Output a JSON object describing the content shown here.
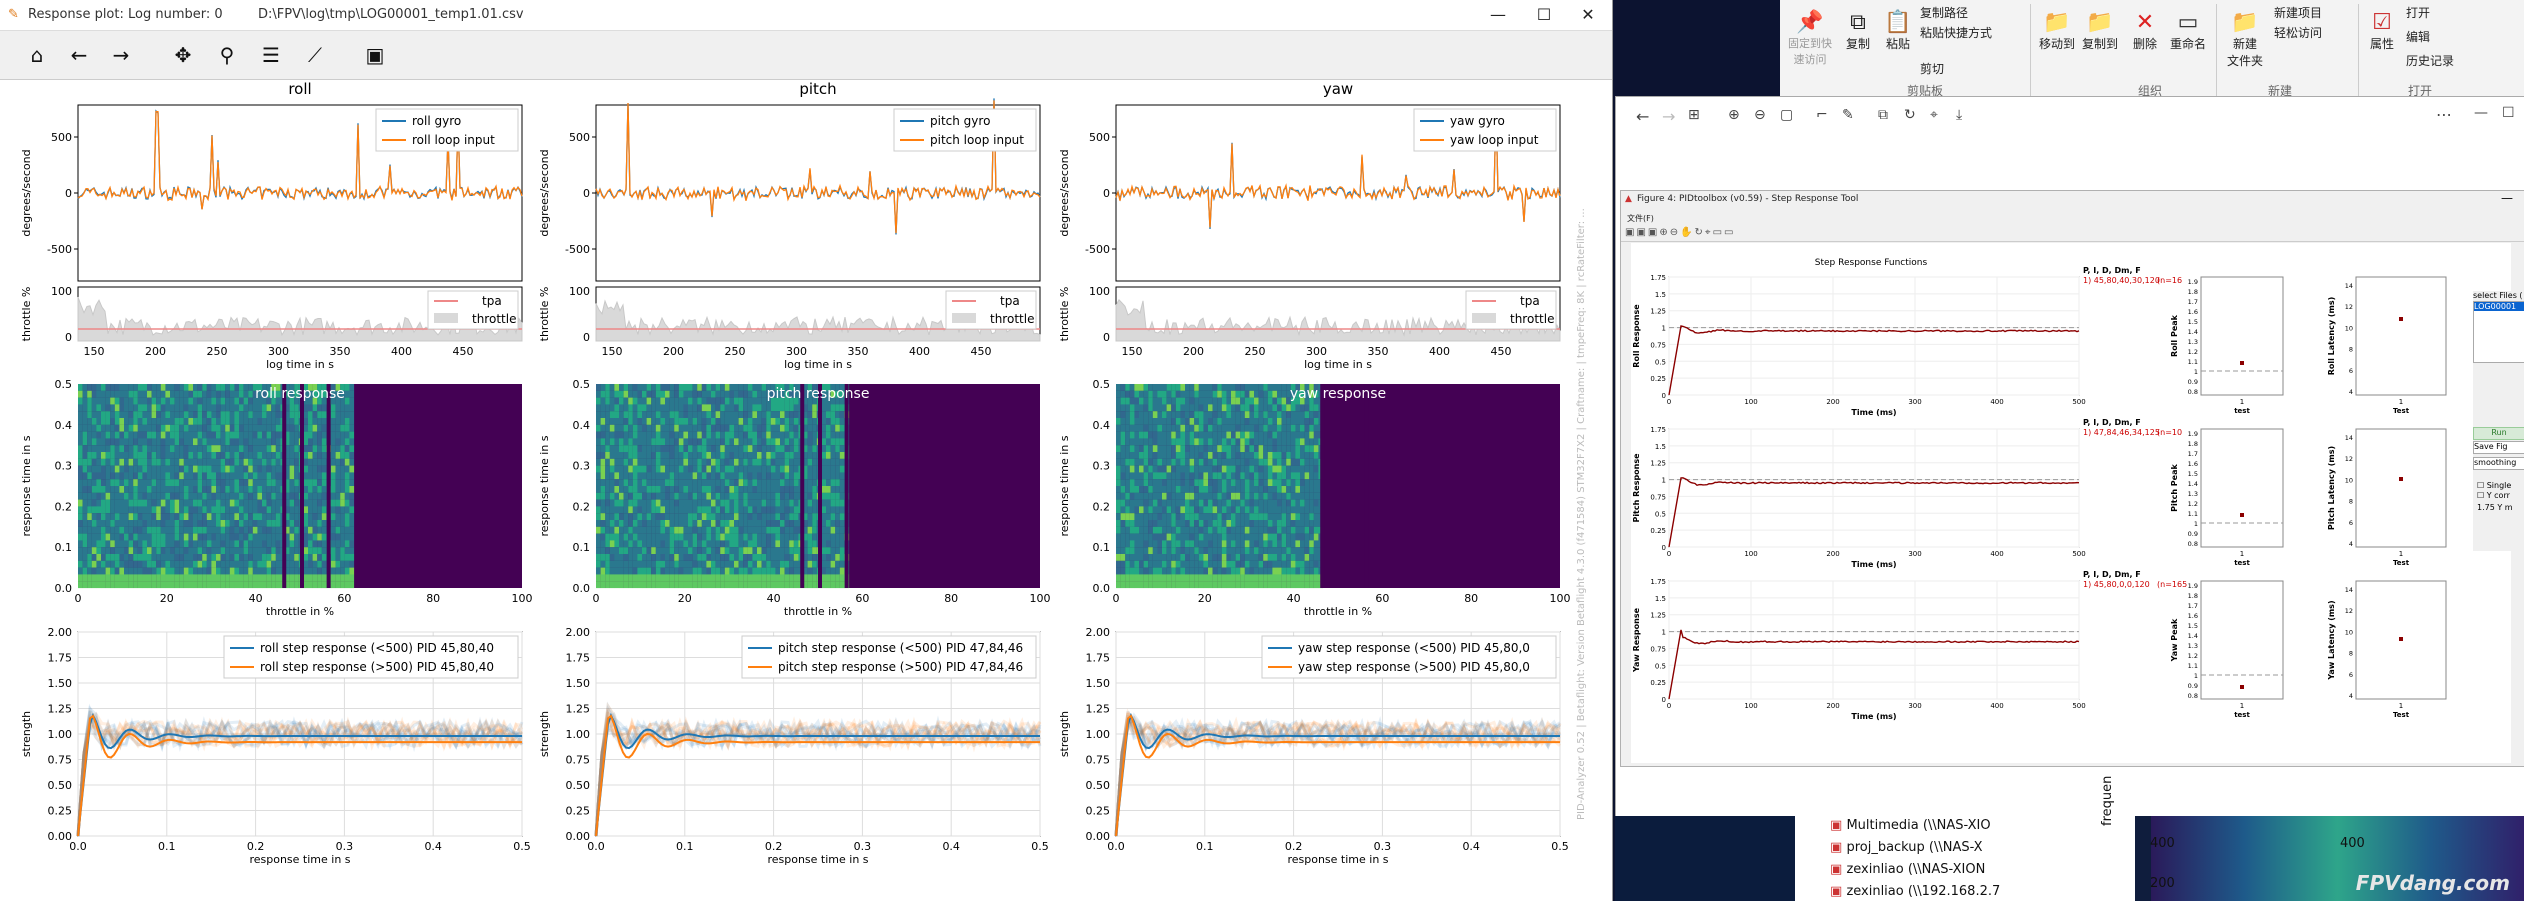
{
  "window1": {
    "title_prefix": "Response plot: Log number: 0",
    "title_path": "D:\\FPV\\log\\tmp\\LOG00001_temp1.01.csv",
    "minimize": "—",
    "maximize": "☐",
    "close": "✕"
  },
  "toolbar": [
    "home-icon",
    "back-icon",
    "forward-icon",
    "pan-icon",
    "zoom-icon",
    "configure-icon",
    "edit-axis-icon",
    "save-icon"
  ],
  "axes": [
    "roll",
    "pitch",
    "yaw"
  ],
  "top_plots": {
    "ylabel": "degrees/second",
    "yticks": [
      "500",
      "0",
      "-500"
    ],
    "legends": {
      "roll": [
        "roll gyro",
        "roll loop input"
      ],
      "pitch": [
        "pitch gyro",
        "pitch loop input"
      ],
      "yaw": [
        "yaw gyro",
        "yaw loop input"
      ]
    }
  },
  "throttle_plots": {
    "ylabel": "throttle %",
    "yticks": [
      "100",
      "0"
    ],
    "xticks": [
      "150",
      "200",
      "250",
      "300",
      "350",
      "400",
      "450"
    ],
    "xlabel": "log time in s",
    "legend": [
      "tpa",
      "throttle"
    ]
  },
  "heatmaps": {
    "titles": {
      "roll": "roll response",
      "pitch": "pitch response",
      "yaw": "yaw response"
    },
    "ylabel": "response time in s",
    "yticks": [
      "0.5",
      "0.4",
      "0.3",
      "0.2",
      "0.1",
      "0.0"
    ],
    "xticks": [
      "0",
      "20",
      "40",
      "60",
      "80",
      "100"
    ],
    "xlabel": "throttle in %"
  },
  "step_plots": {
    "ylabel": "strength",
    "yticks": [
      "2.00",
      "1.75",
      "1.50",
      "1.25",
      "1.00",
      "0.75",
      "0.50",
      "0.25",
      "0.00"
    ],
    "xticks": [
      "0.0",
      "0.1",
      "0.2",
      "0.3",
      "0.4",
      "0.5"
    ],
    "xlabel": "response time in s",
    "legends": {
      "roll": [
        "roll step response (<500)  PID 45,80,40",
        "roll step response (>500)  PID 45,80,40"
      ],
      "pitch": [
        "pitch step response (<500)  PID 47,84,46",
        "pitch step response (>500)  PID 47,84,46"
      ],
      "yaw": [
        "yaw step response (<500)  PID 45,80,0",
        "yaw step response (>500)  PID 45,80,0"
      ]
    }
  },
  "side_text": "PID-Analyzer 0.52 | Betaflight: Version Betaflight 4.3.0 (f471584) STM32F7X2 | Craftname: | tmpeFreq: 8K | rcRateFilter: ... ",
  "explorer_ribbon": {
    "items": [
      "固定到快\n速访问",
      "复制",
      "粘贴",
      "复制路径",
      "粘贴快捷方式",
      "剪切",
      "移动到",
      "复制到",
      "删除",
      "重命名",
      "新建\n文件夹",
      "新建项目",
      "轻松访问",
      "属性",
      "打开",
      "编辑",
      "历史记录"
    ],
    "groups": [
      "剪贴板",
      "组织",
      "新建",
      "打开"
    ]
  },
  "fig4": {
    "title": "Figure 4: PIDtoolbox (v0.59) - Step Response Tool",
    "menu": "文件(F)",
    "header": "Step Response Functions",
    "rows": [
      {
        "ylabel": "Roll Response",
        "pid_header": "P, I, D, Dm, F",
        "pid": "1) 45,80,40,30,120",
        "n": "(n=16",
        "peak_label": "Roll Peak",
        "lat_label": "Roll Latency (ms)"
      },
      {
        "ylabel": "Pitch Response",
        "pid_header": "P, I, D, Dm, F",
        "pid": "1) 47,84,46,34,125",
        "n": "(n=10",
        "peak_label": "Pitch Peak",
        "lat_label": "Pitch Latency (ms)"
      },
      {
        "ylabel": "Yaw Response",
        "pid_header": "P, I, D, Dm, F",
        "pid": "1) 45,80,0,0,120",
        "n": "(n=165",
        "peak_label": "Yaw Peak",
        "lat_label": "Yaw Latency (ms)"
      }
    ],
    "xlabel": "Time (ms)",
    "resp_yticks": [
      "1.75",
      "1.5",
      "1.25",
      "1",
      "0.75",
      "0.5",
      "0.25",
      "0"
    ],
    "resp_xticks": [
      "0",
      "100",
      "200",
      "300",
      "400",
      "500"
    ],
    "peak_yticks": [
      "1.9",
      "1.8",
      "1.7",
      "1.6",
      "1.5",
      "1.4",
      "1.3",
      "1.2",
      "1.1",
      "1",
      "0.9",
      "0.8"
    ],
    "lat_yticks": [
      "14",
      "12",
      "10",
      "8",
      "6",
      "4"
    ],
    "cat_test": "test",
    "cat_Test": "Test",
    "cat_num": "1",
    "side_controls": [
      "select Files (",
      "LOG00001",
      "Run",
      "Save Fig",
      "smoothing",
      "Single",
      "Y corr",
      "1.75  Y m"
    ]
  },
  "file_list": [
    "Multimedia (\\\\NAS-XIO",
    "proj_backup (\\\\NAS-X",
    "zexinliao (\\\\NAS-XION",
    "zexinliao (\\\\192.168.2.7"
  ],
  "freq_axis": {
    "label": "frequen",
    "ticks": [
      "400",
      "200"
    ]
  },
  "watermark": "FPVdang.com"
}
